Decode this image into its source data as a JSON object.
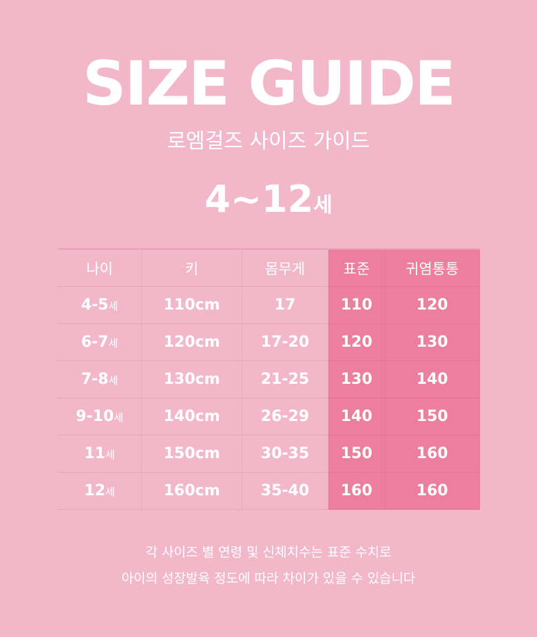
{
  "header": {
    "title": "SIZE GUIDE",
    "subtitle": "로엠걸즈 사이즈 가이드",
    "age_range": "4~12",
    "age_suffix": "세"
  },
  "colors": {
    "background": "#f2b8ca",
    "highlight": "#ec7f9f",
    "text": "#ffffff"
  },
  "table": {
    "headers": [
      "나이",
      "키",
      "몸무게",
      "표준",
      "귀염통통"
    ],
    "rows": [
      {
        "age": "4-5",
        "age_suffix": "세",
        "height": "110cm",
        "weight": "17",
        "standard": "110",
        "chubby": "120"
      },
      {
        "age": "6-7",
        "age_suffix": "세",
        "height": "120cm",
        "weight": "17-20",
        "standard": "120",
        "chubby": "130"
      },
      {
        "age": "7-8",
        "age_suffix": "세",
        "height": "130cm",
        "weight": "21-25",
        "standard": "130",
        "chubby": "140"
      },
      {
        "age": "9-10",
        "age_suffix": "세",
        "height": "140cm",
        "weight": "26-29",
        "standard": "140",
        "chubby": "150"
      },
      {
        "age": "11",
        "age_suffix": "세",
        "height": "150cm",
        "weight": "30-35",
        "standard": "150",
        "chubby": "160"
      },
      {
        "age": "12",
        "age_suffix": "세",
        "height": "160cm",
        "weight": "35-40",
        "standard": "160",
        "chubby": "160"
      }
    ]
  },
  "notes": [
    "각 사이즈 별 연령 및 신체치수는 표준 수치로",
    "아이의 성장발육 정도에 따라 차이가 있을 수 있습니다"
  ]
}
